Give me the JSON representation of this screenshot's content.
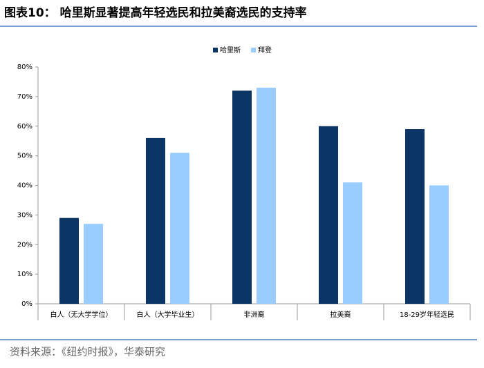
{
  "chart_data": {
    "type": "bar",
    "title": "图表10： 哈里斯显著提高年轻选民和拉美裔选民的支持率",
    "source": "资料来源：《纽约时报》，华泰研究",
    "categories": [
      "白人（无大学学位）",
      "白人（大学毕业生）",
      "非洲裔",
      "拉美裔",
      "18-29岁年轻选民"
    ],
    "series": [
      {
        "name": "哈里斯",
        "color": "#0b3564",
        "values": [
          29,
          56,
          72,
          60,
          59
        ]
      },
      {
        "name": "拜登",
        "color": "#99ccff",
        "values": [
          27,
          51,
          73,
          41,
          40
        ]
      }
    ],
    "ylim": [
      0,
      80
    ],
    "yticks": [
      {
        "value": 0,
        "label": "0%"
      },
      {
        "value": 10,
        "label": "10%"
      },
      {
        "value": 20,
        "label": "20%"
      },
      {
        "value": 30,
        "label": "30%"
      },
      {
        "value": 40,
        "label": "40%"
      },
      {
        "value": 50,
        "label": "50%"
      },
      {
        "value": 60,
        "label": "60%"
      },
      {
        "value": 70,
        "label": "70%"
      },
      {
        "value": 80,
        "label": "80%"
      }
    ],
    "legend": "top",
    "grid": false
  }
}
